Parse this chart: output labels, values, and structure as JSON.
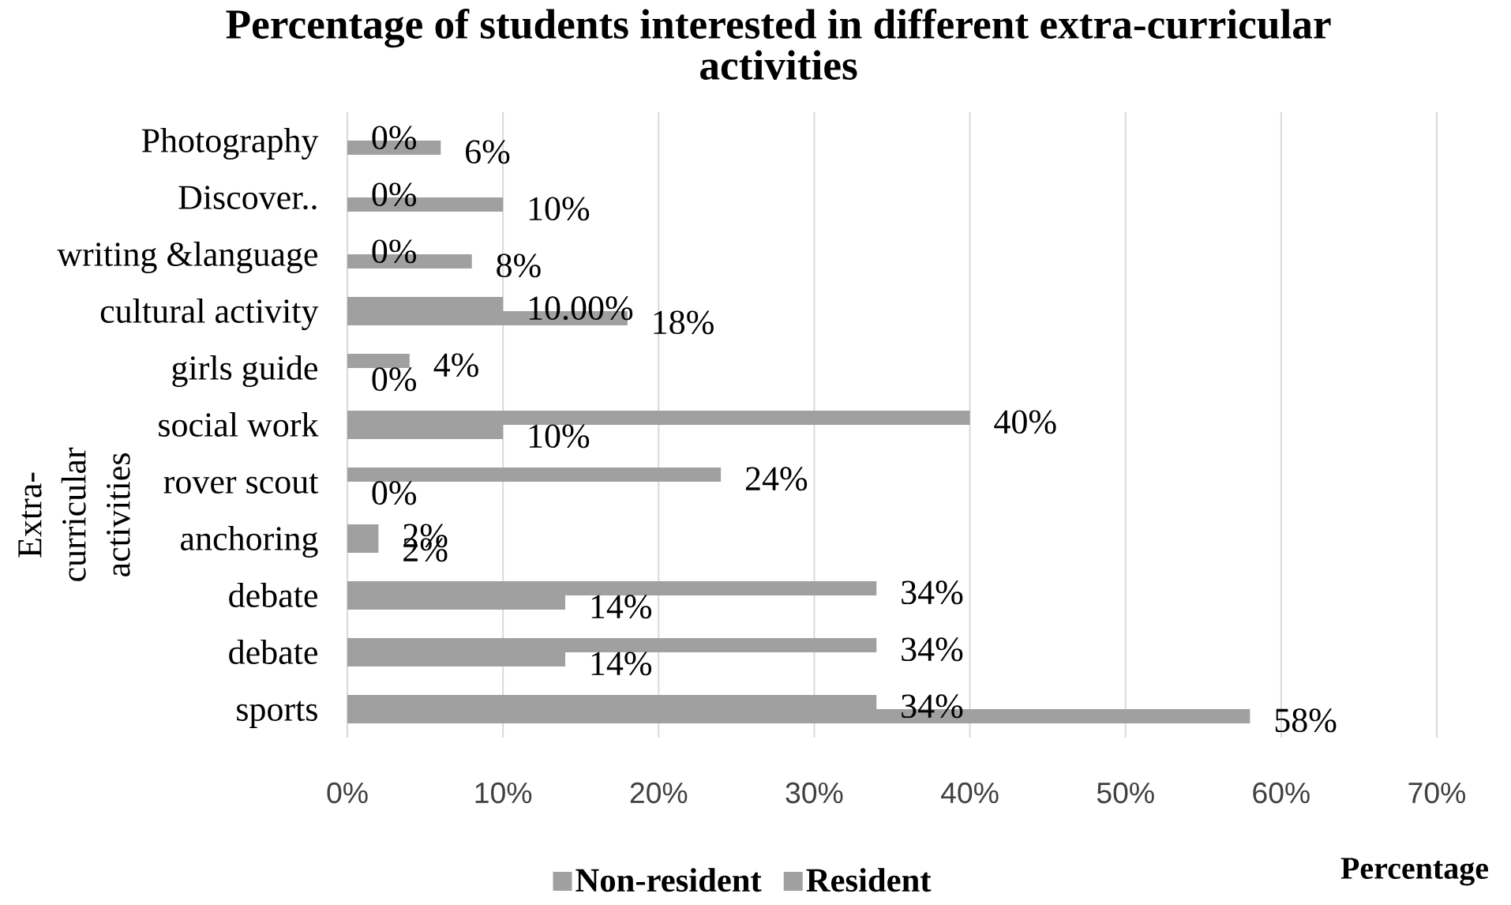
{
  "chart_data": {
    "type": "bar",
    "orientation": "horizontal",
    "title": "Percentage of students interested in different extra-curricular activities",
    "xlabel": "Percentage",
    "ylabel": "Extra-curricular activities",
    "categories": [
      "Photography",
      "Discover..",
      "writing &language",
      "cultural activity",
      "girls guide",
      "social work",
      "rover scout",
      "anchoring",
      "debate",
      "debate",
      "sports"
    ],
    "series": [
      {
        "name": "Resident",
        "color": "#a0a0a0",
        "values": [
          0,
          0,
          0,
          10,
          4,
          40,
          24,
          2,
          34,
          34,
          34
        ],
        "value_labels": [
          "0%",
          "0%",
          "0%",
          "10.00%",
          "4%",
          "40%",
          "24%",
          "2%",
          "34%",
          "34%",
          "34%"
        ]
      },
      {
        "name": "Non-resident",
        "color": "#a0a0a0",
        "values": [
          6,
          10,
          8,
          18,
          0,
          10,
          0,
          2,
          14,
          14,
          58
        ],
        "value_labels": [
          "6%",
          "10%",
          "8%",
          "18%",
          "0%",
          "10%",
          "0%",
          "2%",
          "14%",
          "14%",
          "58%"
        ]
      }
    ],
    "xlim": [
      0,
      70
    ],
    "xticks": [
      {
        "value": 0,
        "label": "0%"
      },
      {
        "value": 10,
        "label": "10%"
      },
      {
        "value": 20,
        "label": "20%"
      },
      {
        "value": 30,
        "label": "30%"
      },
      {
        "value": 40,
        "label": "40%"
      },
      {
        "value": 50,
        "label": "50%"
      },
      {
        "value": 60,
        "label": "60%"
      },
      {
        "value": 70,
        "label": "70%"
      }
    ],
    "grid": "x",
    "legend": "bottom"
  }
}
